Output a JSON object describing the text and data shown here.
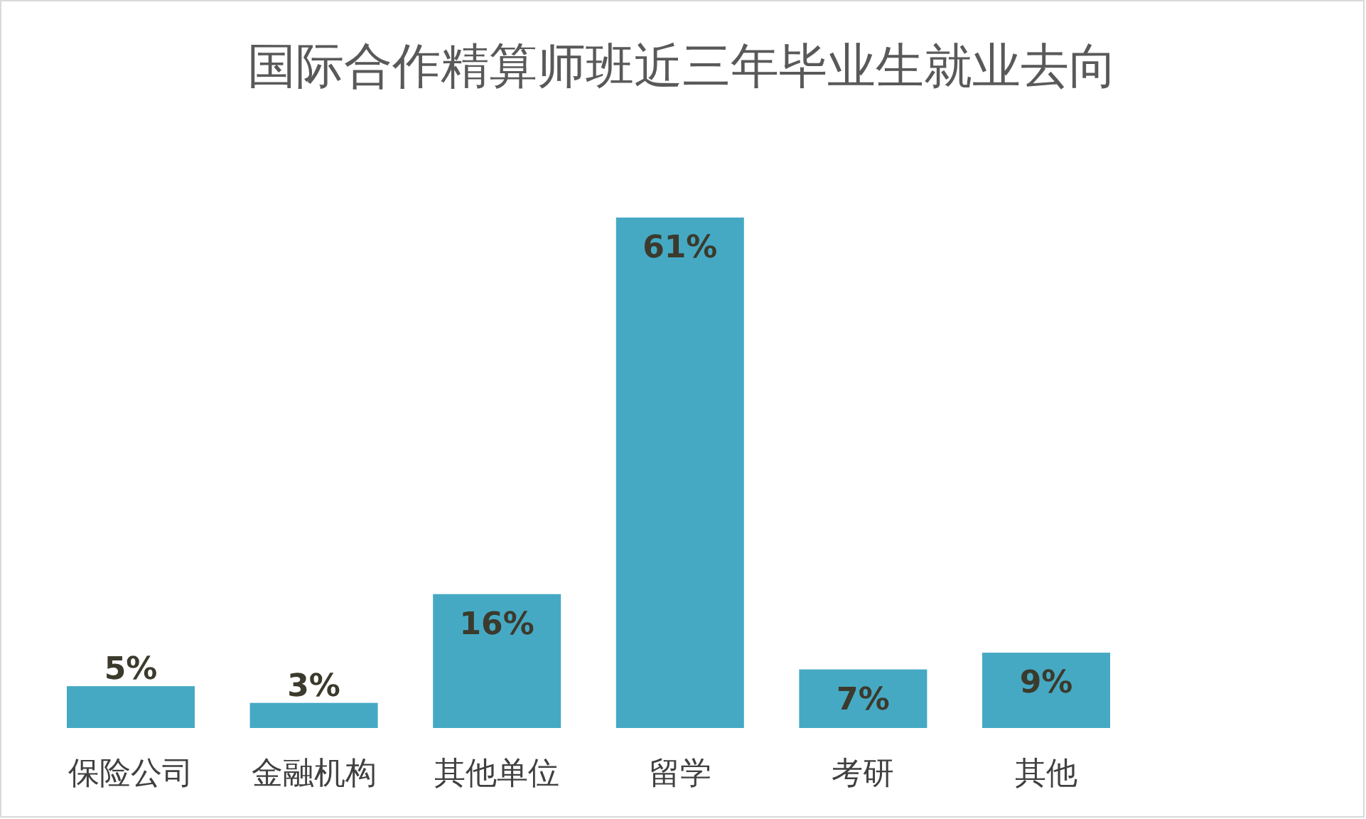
{
  "chart_data": {
    "type": "bar",
    "title": "国际合作精算师班近三年毕业生就业去向",
    "categories": [
      "保险公司",
      "金融机构",
      "其他单位",
      "留学",
      "考研",
      "其他"
    ],
    "values": [
      5,
      3,
      16,
      61,
      7,
      9
    ],
    "value_labels": [
      "5%",
      "3%",
      "16%",
      "61%",
      "7%",
      "9%"
    ],
    "color": "#46a9c4"
  }
}
